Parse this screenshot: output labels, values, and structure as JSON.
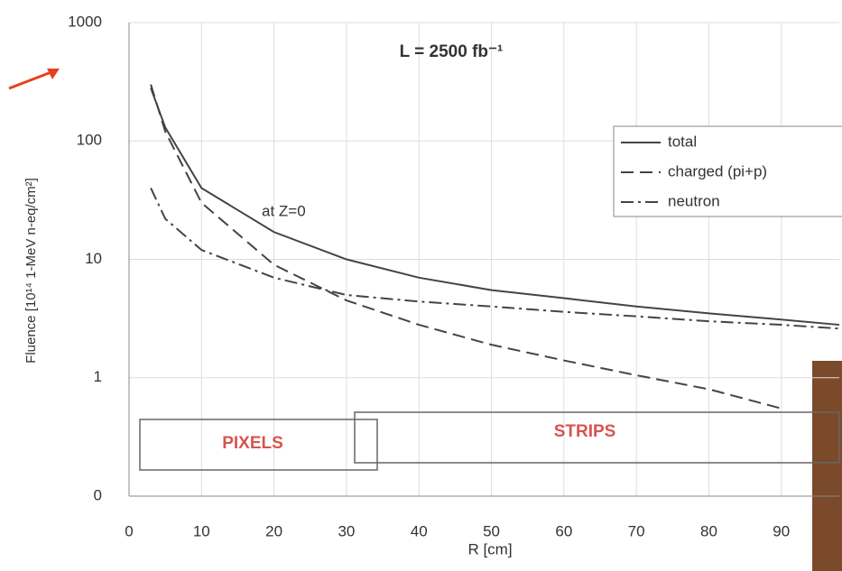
{
  "chart_data": {
    "type": "line",
    "title": "L = 2500 fb⁻¹",
    "x_label": "R [cm]",
    "y_label": "Fluence [10¹⁴ 1-MeV n-eq/cm²]",
    "annotations": [
      "at Z=0",
      "PIXELS",
      "STRIPS"
    ],
    "x": [
      3,
      5,
      10,
      20,
      30,
      40,
      50,
      60,
      70,
      80,
      90,
      98
    ],
    "series": [
      {
        "name": "total",
        "color": "#444444",
        "style": "solid",
        "values": [
          280,
          130,
          40,
          17,
          10,
          7,
          5.5,
          4.7,
          4,
          3.5,
          3.1,
          2.8
        ]
      },
      {
        "name": "charged (pi+p)",
        "color": "#444444",
        "style": "dashed",
        "values": [
          300,
          120,
          30,
          9,
          4.5,
          2.8,
          1.9,
          1.4,
          1.05,
          0.8,
          0.55,
          null
        ]
      },
      {
        "name": "neutron",
        "color": "#444444",
        "style": "dashdot",
        "values": [
          40,
          22,
          12,
          7,
          5,
          4.4,
          4,
          3.6,
          3.3,
          3,
          2.8,
          2.6
        ]
      }
    ],
    "xlim": [
      0,
      98
    ],
    "xticks": [
      0,
      10,
      20,
      30,
      40,
      50,
      60,
      70,
      80,
      90
    ],
    "ylim": [
      0.1,
      1000
    ],
    "yticks": [
      {
        "value": 0.1,
        "label": "0"
      },
      1,
      10,
      100,
      1000
    ],
    "log_y": true,
    "grid": true,
    "legend": "top-right"
  }
}
